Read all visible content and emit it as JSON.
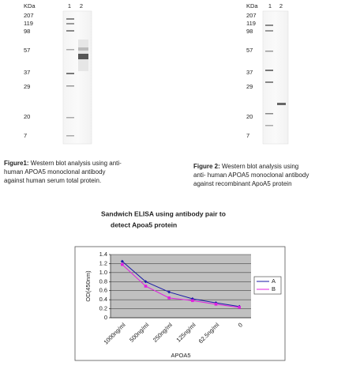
{
  "blot1": {
    "kda": "KDa",
    "lanes": [
      "1",
      "2"
    ],
    "markers": [
      "207",
      "119",
      "98",
      "57",
      "37",
      "29",
      "20",
      "7"
    ]
  },
  "blot2": {
    "kda": "KDa",
    "lanes": [
      "1",
      "2"
    ],
    "markers": [
      "207",
      "119",
      "98",
      "57",
      "37",
      "29",
      "20",
      "7"
    ]
  },
  "caption1": {
    "label": "Figure1:",
    "lines": [
      " Western blot analysis using anti-",
      "human APOA5 monoclonal antibody",
      "against human serum total protein."
    ]
  },
  "caption2": {
    "label": "Figure 2:",
    "lines": [
      " Western blot analysis using",
      "anti- human APOA5 monoclonal antibody",
      "against recombinant ApoA5 protein"
    ]
  },
  "chart_data": {
    "type": "line",
    "title": [
      "Sandwich ELISA using antibody pair to",
      "detect Apoa5 protein"
    ],
    "y_label": "OD(450nm)",
    "x_label": "APOA5",
    "categories": [
      "1000ng/ml",
      "500ng/ml",
      "250ng/ml",
      "125ng/ml",
      "62.5ng/ml",
      "0"
    ],
    "series": [
      {
        "name": "A",
        "color": "#1a1aa6",
        "values": [
          1.25,
          0.8,
          0.57,
          0.42,
          0.33,
          0.25
        ]
      },
      {
        "name": "B",
        "color": "#e020e0",
        "values": [
          1.18,
          0.7,
          0.44,
          0.38,
          0.3,
          0.23
        ]
      }
    ],
    "ylim": [
      0,
      1.4
    ],
    "yticks": [
      0,
      0.2,
      0.4,
      0.6,
      0.8,
      {
        "value": 1,
        "label": "1.0"
      },
      1.2,
      1.4
    ],
    "grid": true,
    "legend": "right"
  }
}
